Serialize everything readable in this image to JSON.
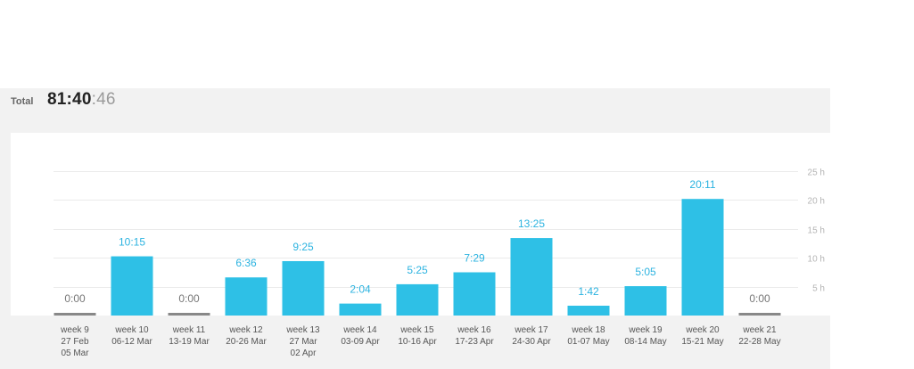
{
  "summary": {
    "total_label": "Total",
    "total_main": "81:40",
    "total_seconds": ":46"
  },
  "colors": {
    "bar": "#2ec0e6",
    "bar_zero": "#888888",
    "value_text": "#2cb3e0",
    "value_text_zero": "#777777"
  },
  "chart_data": {
    "type": "bar",
    "categories": [
      [
        "week 9",
        "27 Feb",
        "05 Mar"
      ],
      [
        "week 10",
        "06-12 Mar"
      ],
      [
        "week 11",
        "13-19 Mar"
      ],
      [
        "week 12",
        "20-26 Mar"
      ],
      [
        "week 13",
        "27 Mar",
        "02 Apr"
      ],
      [
        "week 14",
        "03-09 Apr"
      ],
      [
        "week 15",
        "10-16 Apr"
      ],
      [
        "week 16",
        "17-23 Apr"
      ],
      [
        "week 17",
        "24-30 Apr"
      ],
      [
        "week 18",
        "01-07 May"
      ],
      [
        "week 19",
        "08-14 May"
      ],
      [
        "week 20",
        "15-21 May"
      ],
      [
        "week 21",
        "22-28 May"
      ]
    ],
    "values_hours": [
      0,
      10.25,
      0,
      6.6,
      9.4167,
      2.0667,
      5.4167,
      7.4833,
      13.4167,
      1.7,
      5.0833,
      20.1833,
      0
    ],
    "data_labels": [
      "0:00",
      "10:15",
      "0:00",
      "6:36",
      "9:25",
      "2:04",
      "5:25",
      "7:29",
      "13:25",
      "1:42",
      "5:05",
      "20:11",
      "0:00"
    ],
    "y_ticks": [
      "5 h",
      "10 h",
      "15 h",
      "20 h",
      "25 h"
    ],
    "y_tick_values": [
      5,
      10,
      15,
      20,
      25
    ],
    "ylim": [
      0,
      25
    ],
    "grid": true
  }
}
